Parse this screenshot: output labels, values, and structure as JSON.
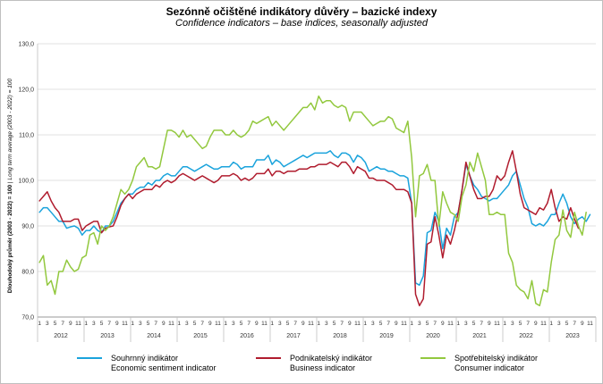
{
  "title": "Sezónně očištěné indikátory důvěry – bazické indexy",
  "subtitle": "Confidence indicators – base indices, seasonally adjusted",
  "chart_data": {
    "type": "line",
    "ylabel_main": "Dlouhodobý průměr (2003 - 2022) = 100",
    "ylabel_sep": " | ",
    "ylabel_alt": "Long term average (2003 - 2022) = 100",
    "ylim": [
      70,
      130
    ],
    "yticks": [
      "70,0",
      "80,0",
      "90,0",
      "100,0",
      "110,0",
      "120,0",
      "130,0"
    ],
    "month_labels": [
      "1",
      "3",
      "5",
      "7",
      "9",
      "11"
    ],
    "years": [
      "2012",
      "2013",
      "2014",
      "2015",
      "2016",
      "2017",
      "2018",
      "2019",
      "2020",
      "2021",
      "2022",
      "2023"
    ],
    "grid": "horizontal",
    "legend_position": "bottom",
    "series": [
      {
        "name": "Souhrnný indikátor",
        "name_en": "Economic sentiment indicator",
        "color": "#1aa3dc",
        "values": [
          93,
          94,
          94,
          93,
          92,
          91,
          91,
          89.5,
          89.8,
          90,
          89.5,
          88,
          89,
          89,
          90,
          89,
          88.5,
          90,
          90,
          91,
          93,
          95,
          96,
          97,
          97,
          98,
          98.5,
          98.5,
          99.5,
          99,
          100,
          100,
          101,
          101.5,
          101,
          101,
          102,
          103,
          103,
          102.5,
          102,
          102.5,
          103,
          103.5,
          103,
          102.5,
          102.5,
          103,
          103,
          103,
          104,
          103.5,
          102.5,
          103,
          103,
          103,
          104.5,
          104.5,
          104.5,
          105.5,
          103.5,
          104.5,
          104,
          103,
          103.5,
          104,
          104.5,
          105,
          105.5,
          105,
          105.5,
          106,
          106,
          106,
          106,
          106.5,
          105.5,
          105,
          106,
          106,
          105.5,
          104,
          105.5,
          105,
          104,
          102,
          102.5,
          103,
          102.5,
          102.5,
          102,
          102,
          101.5,
          101,
          101,
          100.5,
          95,
          77.5,
          77,
          79,
          88.5,
          89,
          93,
          91,
          85,
          89.5,
          88,
          92,
          93,
          98,
          103.5,
          101,
          99,
          98,
          96.5,
          96,
          95.5,
          96,
          96,
          97,
          98,
          99,
          101,
          102,
          99,
          96,
          94,
          90.5,
          90,
          90.5,
          90,
          91,
          92.5,
          92.5,
          95,
          97,
          95,
          92,
          90.5,
          91.5,
          92,
          91,
          92.5
        ]
      },
      {
        "name": "Podnikatelský indikátor",
        "name_en": "Business indicator",
        "color": "#b01c2e",
        "values": [
          95.5,
          96.5,
          97.5,
          95.5,
          94,
          93,
          91,
          91,
          91,
          91.5,
          91.5,
          89,
          90,
          90.5,
          91,
          91,
          88.5,
          89.5,
          89.8,
          90,
          92,
          94.5,
          96,
          97,
          96,
          97,
          97.5,
          98,
          98,
          98,
          99,
          98.5,
          99.5,
          100,
          99.5,
          100,
          101,
          101.5,
          101,
          100.5,
          100,
          100.5,
          101,
          100.5,
          100,
          99.5,
          100,
          101,
          101,
          101,
          101.5,
          101,
          100,
          100.5,
          100,
          100.5,
          101.5,
          101.5,
          101.5,
          102.5,
          101,
          102,
          102,
          101.5,
          102,
          102,
          102,
          102.5,
          102.5,
          102.5,
          103,
          103,
          103.5,
          103.5,
          103.5,
          104,
          103.5,
          103,
          104,
          104,
          103,
          101.5,
          103,
          102.5,
          102,
          100.5,
          100.5,
          100,
          100,
          100,
          99.5,
          99,
          98,
          98,
          98,
          97.5,
          95,
          75,
          72.5,
          74,
          86,
          86.5,
          92,
          88,
          83,
          88,
          86,
          89,
          93,
          98,
          104,
          101,
          98,
          96,
          96,
          96.5,
          96.5,
          98,
          101,
          100,
          101,
          104,
          106.5,
          102,
          97,
          94,
          93.5,
          93,
          92.5,
          94,
          93.5,
          95,
          98,
          94,
          91,
          92,
          91.5,
          94,
          91.5,
          89.5
        ]
      },
      {
        "name": "Spotřebitelský indikátor",
        "name_en": "Consumer indicator",
        "color": "#92c83e",
        "values": [
          82,
          83.5,
          77,
          78,
          75,
          80,
          80,
          82.5,
          81,
          80,
          80.5,
          83,
          83.5,
          88,
          88.5,
          86,
          90,
          89,
          90,
          92,
          95,
          98,
          97,
          98,
          100,
          103,
          104,
          105,
          103,
          103,
          102.5,
          103,
          107,
          111,
          111,
          110.5,
          109.5,
          111,
          109.5,
          110,
          109,
          108,
          107,
          107.5,
          109.5,
          111,
          111,
          111,
          110,
          110,
          111,
          110,
          109.5,
          110,
          111,
          113,
          112.5,
          113,
          113.5,
          114,
          112,
          113,
          112,
          111,
          112,
          113,
          114,
          115,
          116,
          116,
          117,
          115.5,
          118.5,
          117,
          117.5,
          117.5,
          116.5,
          116,
          116.5,
          116,
          113,
          115,
          115,
          115,
          114,
          113,
          112,
          112.5,
          113,
          113,
          114,
          113.5,
          111.5,
          111,
          110.5,
          113,
          105,
          92,
          101,
          101.5,
          103.5,
          100,
          100,
          90,
          97.5,
          95,
          93,
          92.5,
          91,
          96.5,
          99,
          104,
          102,
          106,
          103,
          100,
          92.5,
          92.5,
          93,
          92.5,
          92.5,
          84,
          82,
          77,
          76,
          75.5,
          74,
          78,
          73,
          72.5,
          76,
          75.5,
          82,
          87,
          88,
          93.5,
          89,
          87.5,
          93,
          90,
          88,
          93
        ]
      }
    ]
  }
}
